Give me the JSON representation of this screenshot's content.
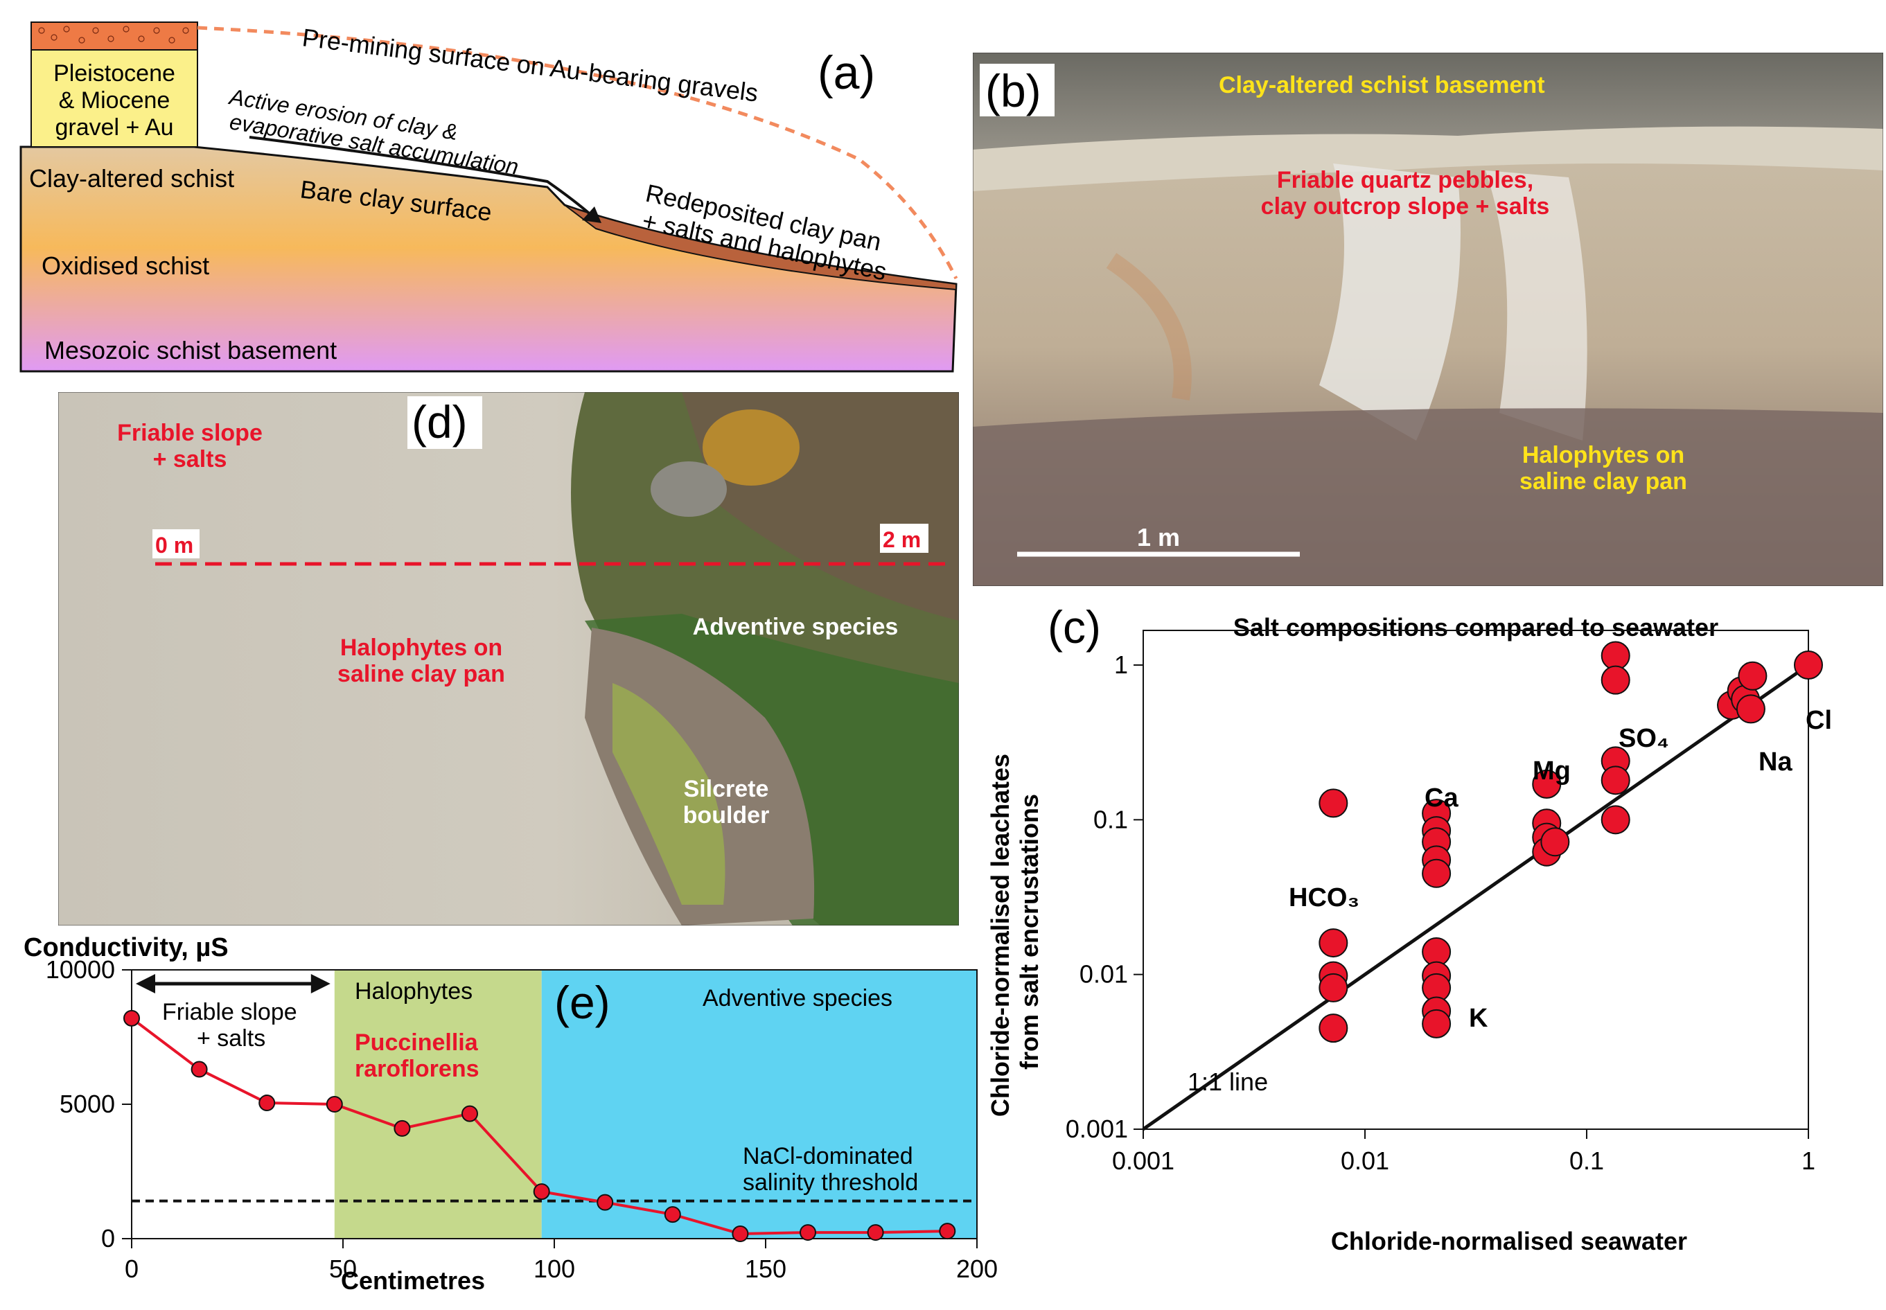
{
  "panel_a": {
    "letter": "(a)",
    "gravel_box": [
      "Pleistocene",
      "& Miocene",
      "gravel + Au"
    ],
    "pre_mining": "Pre-mining surface on Au-bearing gravels",
    "active_erosion": [
      "Active erosion of clay &",
      "evaporative salt accumulation"
    ],
    "bare_clay": "Bare clay surface",
    "redeposited": [
      "Redeposited clay pan",
      "+ salts and halophytes"
    ],
    "layers": [
      "Clay-altered schist",
      "Oxidised schist",
      "Mesozoic schist basement"
    ],
    "colors": {
      "gravel_fill": "#fbf08a",
      "gravel_cap": "#ee7a45",
      "clay_pan": "#b9623c",
      "schist_top": "#e6c69a",
      "schist_mid": "#f6b860",
      "schist_bottom": "#e39af2"
    }
  },
  "panel_b": {
    "letter": "(b)",
    "labels": {
      "basement": "Clay-altered schist basement",
      "friable": [
        "Friable quartz pebbles,",
        "clay outcrop slope + salts"
      ],
      "halophytes": [
        "Halophytes on",
        "saline clay pan"
      ],
      "scale": "1 m"
    }
  },
  "panel_c": {
    "letter": "(c)",
    "line_label": "1:1 line",
    "element_labels": [
      "HCO₃",
      "Ca",
      "Mg",
      "SO₄",
      "Na",
      "Cl",
      "K"
    ]
  },
  "panel_d": {
    "letter": "(d)",
    "labels": {
      "friable": [
        "Friable slope",
        "+ salts"
      ],
      "zero": "0 m",
      "two": "2 m",
      "halophytes": [
        "Halophytes on",
        "saline clay pan"
      ],
      "adventive": "Adventive species",
      "silcrete": [
        "Silcrete",
        "boulder"
      ]
    }
  },
  "panel_e": {
    "letter": "(e)",
    "friable": [
      "Friable slope",
      "+ salts"
    ],
    "zones": [
      {
        "name": "Halophytes",
        "from": 0,
        "to": 0,
        "color": "#ffffff"
      },
      {
        "name": "Halophytes",
        "from": 48,
        "to": 97,
        "color": "#c5d98c"
      },
      {
        "name": "Adventive species",
        "from": 97,
        "to": 200,
        "color": "#5fd3f2"
      }
    ],
    "species": [
      "Puccinellia",
      "raroflorens"
    ],
    "threshold_label": [
      "NaCl-dominated",
      "salinity threshold"
    ]
  },
  "chart_data": [
    {
      "type": "scatter",
      "title": "Salt compositions compared to seawater",
      "xlabel": "Chloride-normalised seawater",
      "ylabel": "Chloride-normalised leachates from salt encrustations",
      "xscale": "log",
      "yscale": "log",
      "xlim": [
        0.001,
        1
      ],
      "ylim": [
        0.001,
        1
      ],
      "xticks": [
        "0.001",
        "0.01",
        "0.1",
        "1"
      ],
      "yticks": [
        "0.001",
        "0.01",
        "0.1",
        "1"
      ],
      "reference_line": {
        "label": "1:1 line",
        "x": [
          0.001,
          1
        ],
        "y": [
          0.001,
          1
        ]
      },
      "marker_color": "#e8142a",
      "groups": [
        {
          "name": "HCO₃",
          "points": [
            [
              0.0072,
              0.128
            ],
            [
              0.0072,
              0.016
            ],
            [
              0.0072,
              0.0098
            ],
            [
              0.0072,
              0.0082
            ],
            [
              0.0072,
              0.0045
            ]
          ]
        },
        {
          "name": "Ca",
          "points": [
            [
              0.021,
              0.11
            ],
            [
              0.021,
              0.085
            ],
            [
              0.021,
              0.072
            ],
            [
              0.021,
              0.055
            ],
            [
              0.021,
              0.045
            ]
          ]
        },
        {
          "name": "K",
          "points": [
            [
              0.021,
              0.014
            ],
            [
              0.021,
              0.0098
            ],
            [
              0.021,
              0.0082
            ],
            [
              0.021,
              0.0058
            ],
            [
              0.021,
              0.0048
            ]
          ]
        },
        {
          "name": "Mg",
          "points": [
            [
              0.066,
              0.17
            ],
            [
              0.066,
              0.095
            ],
            [
              0.066,
              0.077
            ],
            [
              0.066,
              0.062
            ],
            [
              0.072,
              0.072
            ]
          ]
        },
        {
          "name": "SO₄",
          "points": [
            [
              0.135,
              1.15
            ],
            [
              0.135,
              0.8
            ],
            [
              0.135,
              0.24
            ],
            [
              0.135,
              0.18
            ],
            [
              0.135,
              0.1
            ]
          ]
        },
        {
          "name": "Na",
          "points": [
            [
              0.45,
              0.55
            ],
            [
              0.5,
              0.68
            ],
            [
              0.52,
              0.6
            ],
            [
              0.55,
              0.52
            ],
            [
              0.56,
              0.85
            ]
          ]
        },
        {
          "name": "Cl",
          "points": [
            [
              1.0,
              1.0
            ]
          ]
        }
      ]
    },
    {
      "type": "line",
      "title": "Conductivity, µS",
      "xlabel": "Centimetres",
      "ylabel": "Conductivity, µS",
      "xlim": [
        0,
        200
      ],
      "ylim": [
        0,
        10000
      ],
      "xticks": [
        "0",
        "50",
        "100",
        "150",
        "200"
      ],
      "yticks": [
        "0",
        "5000",
        "10000"
      ],
      "threshold": 1400,
      "line_color": "#e8142a",
      "x": [
        0,
        16,
        32,
        48,
        64,
        80,
        97,
        112,
        128,
        144,
        160,
        176,
        193
      ],
      "y": [
        8200,
        6300,
        5050,
        5000,
        4100,
        4650,
        1750,
        1350,
        900,
        180,
        230,
        230,
        280
      ]
    }
  ]
}
